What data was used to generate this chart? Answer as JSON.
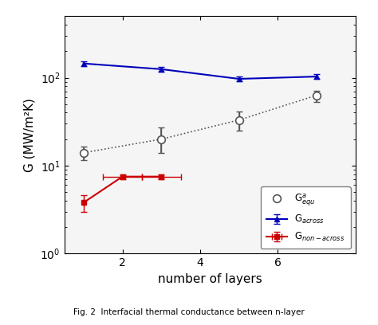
{
  "title": "",
  "xlabel": "number of layers",
  "ylabel": "G (MW/m²K)",
  "xlim": [
    0.5,
    8.0
  ],
  "ylim": [
    1.0,
    500
  ],
  "blue_x": [
    1,
    3,
    5,
    7
  ],
  "blue_y": [
    145,
    125,
    97,
    103
  ],
  "blue_yerr": [
    10,
    8,
    6,
    6
  ],
  "red_x": [
    1,
    2,
    3
  ],
  "red_y": [
    3.8,
    7.5,
    7.5
  ],
  "red_yerr": [
    0.8,
    0.5,
    0.5
  ],
  "red_xerr": [
    0,
    0.5,
    0.5
  ],
  "black_x": [
    1,
    3,
    5,
    7
  ],
  "black_y": [
    14,
    20,
    33,
    63
  ],
  "black_yerr_lo": [
    2.5,
    6,
    8,
    10
  ],
  "black_yerr_hi": [
    2.5,
    7,
    8,
    8
  ],
  "blue_color": "#0000bb",
  "red_color": "#cc0000",
  "black_color": "#555555",
  "xticks": [
    2,
    4,
    6
  ],
  "xtick_labels": [
    "2",
    "4",
    "6"
  ],
  "yticks": [
    1,
    10,
    100
  ],
  "ytick_labels": [
    "10$^{0}$",
    "10$^{1}$",
    "10$^{2}$"
  ],
  "bg_color": "#f5f5f5",
  "fig_bg_color": "#ffffff"
}
